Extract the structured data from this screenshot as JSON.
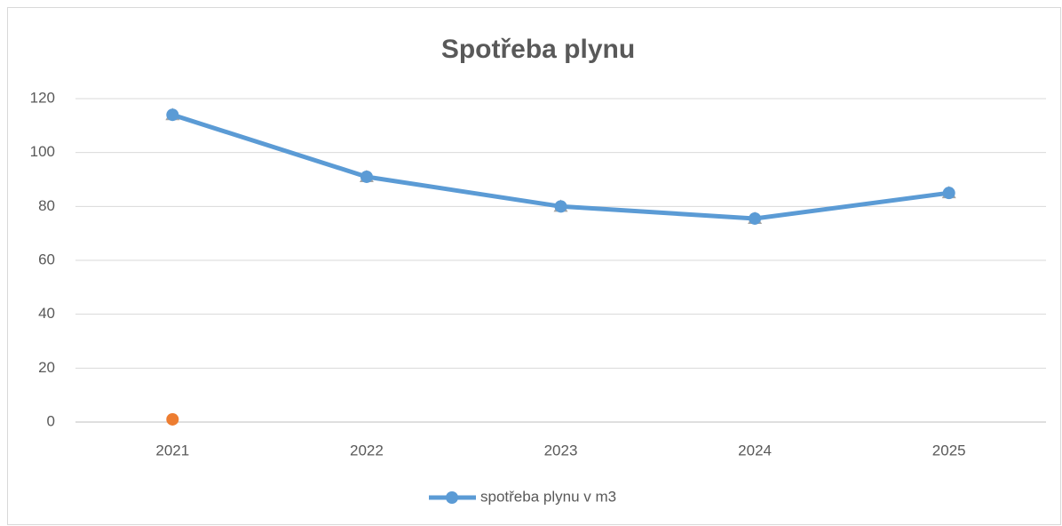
{
  "chart_data": {
    "type": "line",
    "title": "Spotřeba plynu",
    "categories": [
      "2021",
      "2022",
      "2023",
      "2024",
      "2025"
    ],
    "series": [
      {
        "name": "spotřeba plynu v m3",
        "color": "#5b9bd5",
        "marker": "circle",
        "values": [
          114,
          91,
          80,
          75.5,
          85
        ]
      },
      {
        "color": "#a5a5a5",
        "marker": "triangle",
        "line": false,
        "values": [
          114,
          91,
          80,
          75.5,
          85
        ]
      },
      {
        "color": "#ed7d31",
        "marker": "circle",
        "line": false,
        "values": [
          1,
          null,
          null,
          null,
          null
        ]
      }
    ],
    "ylim": [
      0,
      120
    ],
    "yticks": [
      0,
      20,
      40,
      60,
      80,
      100,
      120
    ],
    "grid": true,
    "legend": "bottom"
  }
}
